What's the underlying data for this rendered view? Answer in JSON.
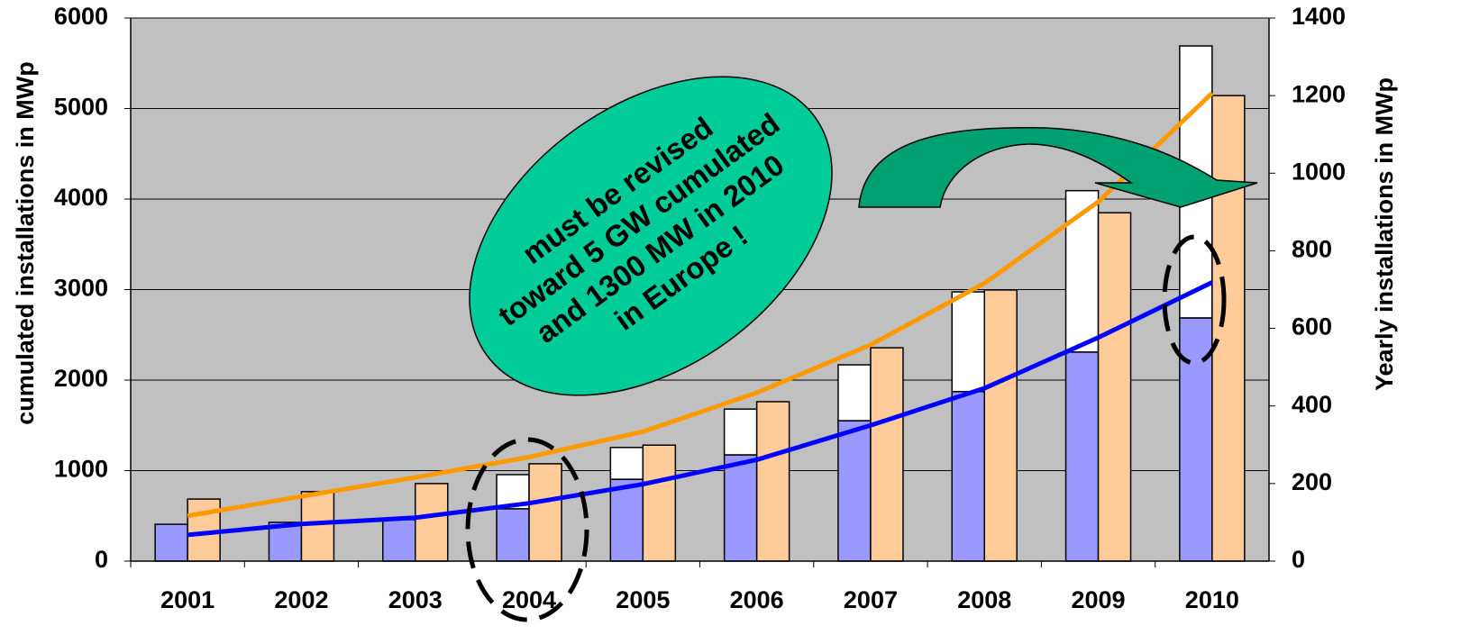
{
  "chart_data": {
    "type": "bar",
    "y_label": "cumulated installations in MWp",
    "y2_label": "Yearly installations in MWp",
    "annotation": [
      "must be revised",
      "toward 5 GW cumulated",
      "and 1300 MW in 2010",
      "in Europe !"
    ],
    "categories": [
      "2001",
      "2002",
      "2003",
      "2004",
      "2005",
      "2006",
      "2007",
      "2008",
      "2009",
      "2010"
    ],
    "series": [
      {
        "kind": "bar",
        "axis": "y2",
        "color": "#9999ff",
        "values": [
          95,
          100,
          107,
          135,
          211,
          274,
          362,
          437,
          539,
          627
        ]
      },
      {
        "kind": "bar",
        "axis": "y2",
        "stacked": true,
        "color": "#ffffff",
        "values": [
          null,
          null,
          null,
          88,
          82,
          118,
          144,
          257,
          416,
          701
        ]
      },
      {
        "kind": "bar",
        "axis": "y2",
        "color": "#ffcc99",
        "values": [
          160,
          179,
          200,
          251,
          299,
          411,
          550,
          699,
          898,
          1200
        ]
      },
      {
        "kind": "line",
        "axis": "y",
        "color": "#ff9900",
        "values": [
          500,
          716,
          925,
          1150,
          1430,
          1860,
          2390,
          3070,
          3970,
          5170
        ]
      },
      {
        "kind": "line",
        "axis": "y",
        "color": "#0000ff",
        "values": [
          290,
          410,
          480,
          640,
          850,
          1120,
          1500,
          1910,
          2470,
          3080
        ]
      }
    ],
    "ylim": [
      0,
      6000
    ],
    "yticks": [
      0,
      1000,
      2000,
      3000,
      4000,
      5000,
      6000
    ],
    "y2lim": [
      0,
      1400
    ],
    "y2ticks": [
      0,
      200,
      400,
      600,
      800,
      1000,
      1200,
      1400
    ],
    "grid": true,
    "plot_color": "#c0c0c0"
  }
}
